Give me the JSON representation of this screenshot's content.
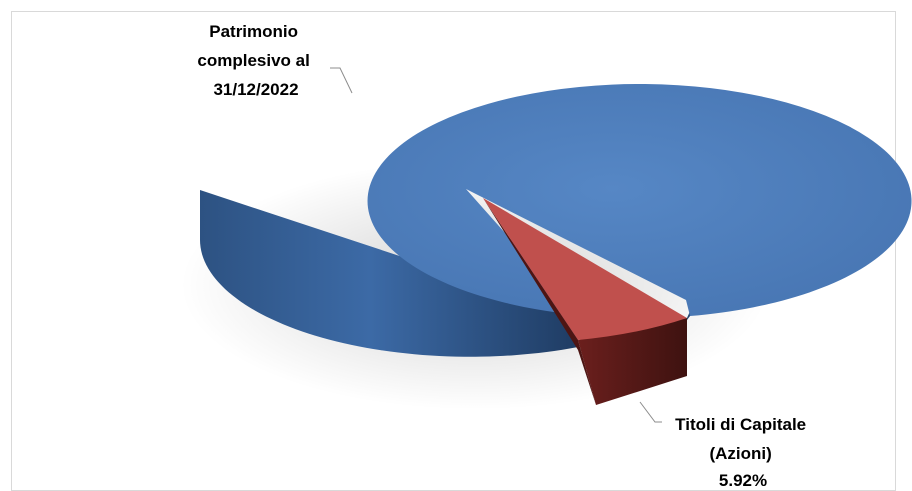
{
  "chart_data": {
    "type": "pie",
    "style": "3d",
    "title": "",
    "slices": [
      {
        "label_lines": [
          "Patrimonio",
          "complesivo al",
          "31/12/2022"
        ],
        "value": 94.08,
        "color": "#4f81bd"
      },
      {
        "label_lines": [
          "Titoli di Capitale",
          "(Azioni)",
          "5.92%"
        ],
        "value": 5.92,
        "color": "#c0504d",
        "exploded": true
      }
    ]
  }
}
